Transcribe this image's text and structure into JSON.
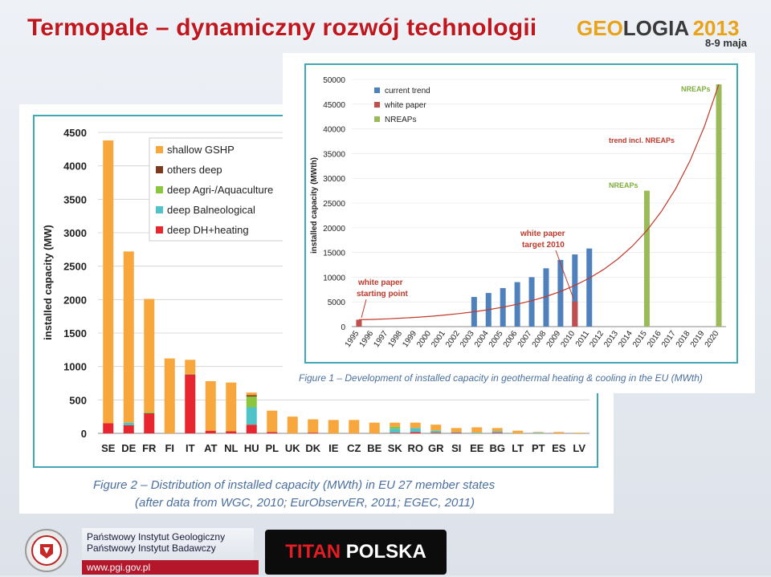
{
  "slide": {
    "title": "Termopale – dynamiczny rozwój technologii",
    "logo": {
      "geo": "GEO",
      "logia": "LOGIA",
      "year": "2013",
      "dates": "8-9 maja"
    },
    "footer": {
      "line1": "Państwowy Instytut Geologiczny",
      "line2": "Państwowy Instytut Badawczy",
      "url": "www.pgi.gov.pl",
      "brand_titan": "TITAN",
      "brand_polska": "POLSKA"
    }
  },
  "chart_data": [
    {
      "type": "bar",
      "stacked": true,
      "ylabel": "installed capacity (MW)",
      "ylim": [
        0,
        4500
      ],
      "yticks": [
        0,
        500,
        1000,
        1500,
        2000,
        2500,
        3000,
        3500,
        4000,
        4500
      ],
      "categories": [
        "SE",
        "DE",
        "FR",
        "FI",
        "IT",
        "AT",
        "NL",
        "HU",
        "PL",
        "UK",
        "DK",
        "IE",
        "CZ",
        "BE",
        "SK",
        "RO",
        "GR",
        "SI",
        "EE",
        "BG",
        "LT",
        "PT",
        "ES",
        "LV"
      ],
      "series": [
        {
          "name": "deep DH+heating",
          "color": "#e8262f",
          "values": [
            150,
            120,
            300,
            0,
            880,
            40,
            30,
            130,
            20,
            0,
            10,
            0,
            0,
            0,
            10,
            20,
            10,
            10,
            0,
            10,
            0,
            0,
            0,
            0
          ]
        },
        {
          "name": "deep Balneological",
          "color": "#4fc3c8",
          "values": [
            0,
            40,
            0,
            0,
            0,
            0,
            0,
            260,
            0,
            0,
            0,
            0,
            0,
            0,
            60,
            60,
            30,
            10,
            10,
            20,
            0,
            10,
            0,
            0
          ]
        },
        {
          "name": "deep Agri-/Aquaculture",
          "color": "#8cc63f",
          "values": [
            0,
            0,
            20,
            0,
            10,
            0,
            0,
            160,
            0,
            0,
            0,
            0,
            0,
            0,
            30,
            0,
            0,
            0,
            0,
            0,
            0,
            0,
            0,
            0
          ]
        },
        {
          "name": "others deep",
          "color": "#7b3a1e",
          "values": [
            0,
            0,
            0,
            0,
            0,
            0,
            0,
            20,
            0,
            0,
            0,
            0,
            0,
            0,
            0,
            0,
            0,
            0,
            0,
            0,
            0,
            0,
            0,
            0
          ]
        },
        {
          "name": "shallow GSHP",
          "color": "#f7a73b",
          "values": [
            4230,
            2560,
            1690,
            1120,
            210,
            740,
            730,
            40,
            320,
            250,
            200,
            200,
            200,
            160,
            60,
            80,
            90,
            60,
            80,
            50,
            40,
            10,
            20,
            10
          ]
        }
      ],
      "caption_line1": "Figure 2 – Distribution of installed capacity (MWth) in EU 27 member states",
      "caption_line2": "(after data from WGC, 2010; EurObservER, 2011; EGEC, 2011)"
    },
    {
      "type": "bar",
      "ylabel": "installed capacity (MWth)",
      "ylim": [
        0,
        50000
      ],
      "yticks": [
        0,
        5000,
        10000,
        15000,
        20000,
        25000,
        30000,
        35000,
        40000,
        45000,
        50000
      ],
      "categories": [
        "1995",
        "1996",
        "1997",
        "1998",
        "1999",
        "2000",
        "2001",
        "2002",
        "2003",
        "2004",
        "2005",
        "2006",
        "2007",
        "2008",
        "2009",
        "2010",
        "2011",
        "2012",
        "2013",
        "2014",
        "2015",
        "2016",
        "2017",
        "2018",
        "2019",
        "2020"
      ],
      "series": [
        {
          "name": "current trend",
          "color": "#4f81bd",
          "values": [
            null,
            null,
            null,
            null,
            null,
            null,
            null,
            null,
            6000,
            6800,
            7800,
            9000,
            10000,
            11800,
            13500,
            14600,
            15800,
            null,
            null,
            null,
            null,
            null,
            null,
            null,
            null,
            null
          ]
        },
        {
          "name": "white paper",
          "color": "#c0504d",
          "values": [
            1400,
            null,
            null,
            null,
            null,
            null,
            null,
            null,
            null,
            null,
            null,
            null,
            null,
            null,
            null,
            5100,
            null,
            null,
            null,
            null,
            null,
            null,
            null,
            null,
            null,
            null
          ]
        },
        {
          "name": "NREAPs",
          "color": "#9bbb59",
          "values": [
            null,
            null,
            null,
            null,
            null,
            null,
            null,
            null,
            null,
            null,
            null,
            null,
            null,
            null,
            null,
            null,
            null,
            null,
            null,
            null,
            27500,
            null,
            null,
            null,
            null,
            49000
          ]
        }
      ],
      "trend_label": "trend incl. NREAPs",
      "annotations": {
        "nreaps_top": "NREAPs",
        "nreaps_mid": "NREAPs",
        "wp_target_1": "white paper",
        "wp_target_2": "target 2010",
        "wp_start_1": "white paper",
        "wp_start_2": "starting point"
      },
      "caption": "Figure 1 – Development of installed capacity in geothermal heating & cooling in the EU (MWth)"
    }
  ]
}
